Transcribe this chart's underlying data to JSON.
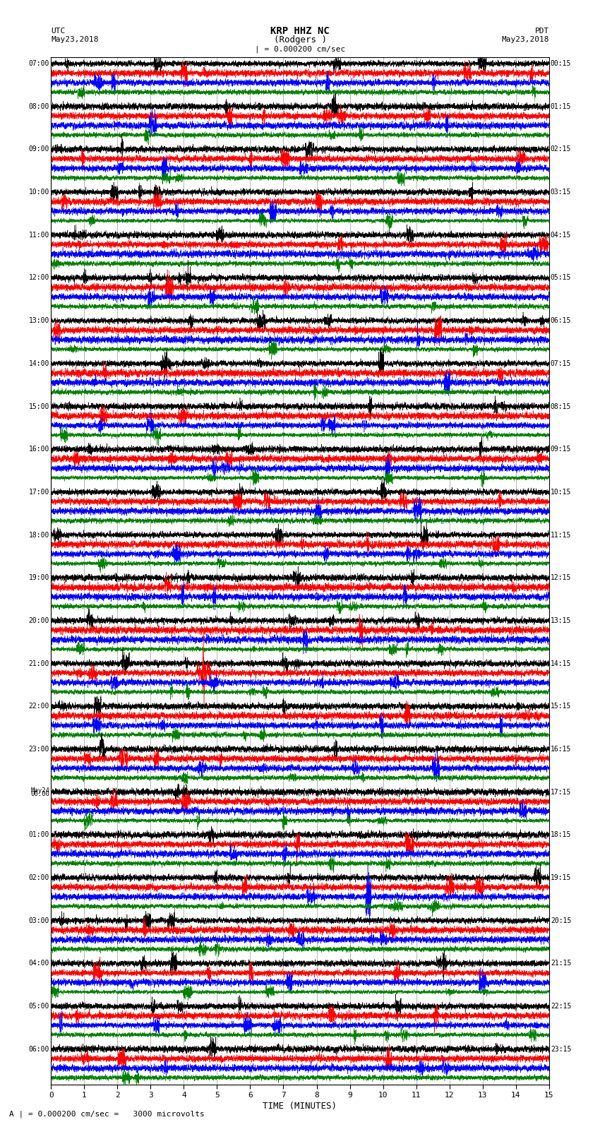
{
  "title_line1": "KRP HHZ NC",
  "title_line2": "(Rodgers )",
  "scale_label": "| = 0.000200 cm/sec",
  "bottom_label": "A | = 0.000200 cm/sec =   3000 microvolts",
  "xlabel": "TIME (MINUTES)",
  "left_header_line1": "UTC",
  "left_header_line2": "May23,2018",
  "right_header_line1": "PDT",
  "right_header_line2": "May23,2018",
  "left_times": [
    "07:00",
    "08:00",
    "09:00",
    "10:00",
    "11:00",
    "12:00",
    "13:00",
    "14:00",
    "15:00",
    "16:00",
    "17:00",
    "18:00",
    "19:00",
    "20:00",
    "21:00",
    "22:00",
    "23:00",
    "May24",
    "00:00",
    "01:00",
    "02:00",
    "03:00",
    "04:00",
    "05:00",
    "06:00"
  ],
  "right_times": [
    "00:15",
    "01:15",
    "02:15",
    "03:15",
    "04:15",
    "05:15",
    "06:15",
    "07:15",
    "08:15",
    "09:15",
    "10:15",
    "11:15",
    "12:15",
    "13:15",
    "14:15",
    "15:15",
    "16:15",
    "17:15",
    "18:15",
    "19:15",
    "20:15",
    "21:15",
    "22:15",
    "23:15"
  ],
  "num_rows": 24,
  "traces_per_row": 4,
  "colors": [
    "black",
    "red",
    "blue",
    "green"
  ],
  "bg_color": "white",
  "fig_width": 8.5,
  "fig_height": 16.13,
  "dpi": 100,
  "xmin": 0,
  "xmax": 15,
  "xticks": [
    0,
    1,
    2,
    3,
    4,
    5,
    6,
    7,
    8,
    9,
    10,
    11,
    12,
    13,
    14,
    15
  ]
}
